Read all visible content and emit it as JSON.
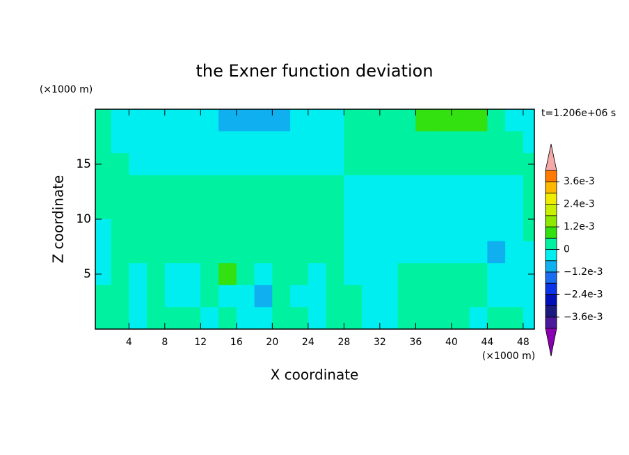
{
  "chart_data": {
    "type": "contour",
    "title": "the Exner function deviation",
    "xlabel": "X coordinate",
    "ylabel": "Z coordinate",
    "x_unit_label": "(×1000 m)",
    "y_unit_label": "(×1000 m)",
    "time_label": "t=1.206e+06 s",
    "xlim": [
      0.25,
      49.25
    ],
    "ylim": [
      0,
      20
    ],
    "xticks": [
      4,
      8,
      12,
      16,
      20,
      24,
      28,
      32,
      36,
      40,
      44,
      48
    ],
    "yticks": [
      5,
      10,
      15
    ],
    "x": [
      1,
      3,
      5,
      7,
      9,
      11,
      13,
      15,
      17,
      19,
      21,
      23,
      25,
      27,
      29,
      31,
      33,
      35,
      37,
      39,
      41,
      43,
      45,
      47,
      49
    ],
    "y": [
      19,
      17,
      15,
      13,
      11,
      9,
      7,
      5,
      3,
      1
    ],
    "cell_size": [
      2,
      2
    ],
    "values": [
      [
        0.0003,
        -0.0003,
        -0.0003,
        -0.0003,
        -0.0003,
        -0.0003,
        -0.0003,
        -0.0009,
        -0.0009,
        -0.0009,
        -0.0009,
        -0.0003,
        -0.0003,
        -0.0003,
        0.0003,
        0.0003,
        0.0003,
        0.0003,
        0.0009,
        0.0009,
        0.0009,
        0.0009,
        0.0003,
        -0.0003,
        -0.0003
      ],
      [
        0.0003,
        -0.0003,
        -0.0003,
        -0.0003,
        -0.0003,
        -0.0003,
        -0.0003,
        -0.0003,
        -0.0003,
        -0.0003,
        -0.0003,
        -0.0003,
        -0.0003,
        -0.0003,
        0.0003,
        0.0003,
        0.0003,
        0.0003,
        0.0003,
        0.0003,
        0.0003,
        0.0003,
        0.0003,
        0.0003,
        -0.0003
      ],
      [
        0.0003,
        0.0003,
        -0.0003,
        -0.0003,
        -0.0003,
        -0.0003,
        -0.0003,
        -0.0003,
        -0.0003,
        -0.0003,
        -0.0003,
        -0.0003,
        -0.0003,
        -0.0003,
        0.0003,
        0.0003,
        0.0003,
        0.0003,
        0.0003,
        0.0003,
        0.0003,
        0.0003,
        0.0003,
        0.0003,
        0.0003
      ],
      [
        0.0003,
        0.0003,
        0.0003,
        0.0003,
        0.0003,
        0.0003,
        0.0003,
        0.0003,
        0.0003,
        0.0003,
        0.0003,
        0.0003,
        0.0003,
        0.0003,
        -0.0003,
        -0.0003,
        -0.0003,
        -0.0003,
        -0.0003,
        -0.0003,
        -0.0003,
        -0.0003,
        -0.0003,
        -0.0003,
        0.0003
      ],
      [
        0.0003,
        0.0003,
        0.0003,
        0.0003,
        0.0003,
        0.0003,
        0.0003,
        0.0003,
        0.0003,
        0.0003,
        0.0003,
        0.0003,
        0.0003,
        0.0003,
        -0.0003,
        -0.0003,
        -0.0003,
        -0.0003,
        -0.0003,
        -0.0003,
        -0.0003,
        -0.0003,
        -0.0003,
        -0.0003,
        0.0003
      ],
      [
        -0.0003,
        0.0003,
        0.0003,
        0.0003,
        0.0003,
        0.0003,
        0.0003,
        0.0003,
        0.0003,
        0.0003,
        0.0003,
        0.0003,
        0.0003,
        0.0003,
        -0.0003,
        -0.0003,
        -0.0003,
        -0.0003,
        -0.0003,
        -0.0003,
        -0.0003,
        -0.0003,
        -0.0003,
        -0.0003,
        0.0003
      ],
      [
        -0.0003,
        0.0003,
        0.0003,
        0.0003,
        0.0003,
        0.0003,
        0.0003,
        0.0003,
        0.0003,
        0.0003,
        0.0003,
        0.0003,
        0.0003,
        0.0003,
        -0.0003,
        -0.0003,
        -0.0003,
        -0.0003,
        -0.0003,
        -0.0003,
        -0.0003,
        -0.0003,
        -0.0009,
        -0.0003,
        -0.0003
      ],
      [
        -0.0003,
        0.0003,
        -0.0003,
        0.0003,
        -0.0003,
        -0.0003,
        0.0003,
        0.0009,
        0.0003,
        -0.0003,
        0.0003,
        0.0003,
        -0.0003,
        0.0003,
        -0.0003,
        -0.0003,
        -0.0003,
        0.0003,
        0.0003,
        0.0003,
        0.0003,
        0.0003,
        -0.0003,
        -0.0003,
        -0.0003
      ],
      [
        0.0003,
        0.0003,
        -0.0003,
        0.0003,
        -0.0003,
        -0.0003,
        0.0003,
        -0.0003,
        -0.0003,
        -0.0009,
        0.0003,
        -0.0003,
        -0.0003,
        0.0003,
        0.0003,
        -0.0003,
        -0.0003,
        0.0003,
        0.0003,
        0.0003,
        0.0003,
        0.0003,
        -0.0003,
        -0.0003,
        -0.0003
      ],
      [
        0.0003,
        0.0003,
        -0.0003,
        0.0003,
        0.0003,
        0.0003,
        -0.0003,
        0.0003,
        -0.0003,
        -0.0003,
        0.0003,
        0.0003,
        -0.0003,
        0.0003,
        0.0003,
        -0.0003,
        -0.0003,
        0.0003,
        0.0003,
        0.0003,
        0.0003,
        -0.0003,
        0.0003,
        0.0003,
        -0.0003
      ]
    ],
    "levels": [
      -0.0042,
      -0.0036,
      -0.003,
      -0.0024,
      -0.0018,
      -0.0012,
      -0.0006,
      0,
      0.0006,
      0.0012,
      0.0018,
      0.0024,
      0.003,
      0.0036,
      0.0042
    ],
    "colors": [
      "#8a00b0",
      "#4a1a9a",
      "#1a1a80",
      "#0010b8",
      "#0a34e8",
      "#1a6cf0",
      "#10b0f0",
      "#00eef0",
      "#00f2a0",
      "#33e010",
      "#8ee800",
      "#c8f000",
      "#f0ec00",
      "#ffb800",
      "#ff7a00",
      "#ff3010",
      "#f4a8a8"
    ],
    "colorbar_ticks": [
      {
        "value": 0.0036,
        "label": "3.6e-3"
      },
      {
        "value": 0.0024,
        "label": "2.4e-3"
      },
      {
        "value": 0.0012,
        "label": "1.2e-3"
      },
      0,
      {
        "value": -0.0012,
        "label": "−1.2e-3"
      },
      {
        "value": -0.0024,
        "label": "−2.4e-3"
      },
      {
        "value": -0.0036,
        "label": "−3.6e-3"
      }
    ]
  }
}
